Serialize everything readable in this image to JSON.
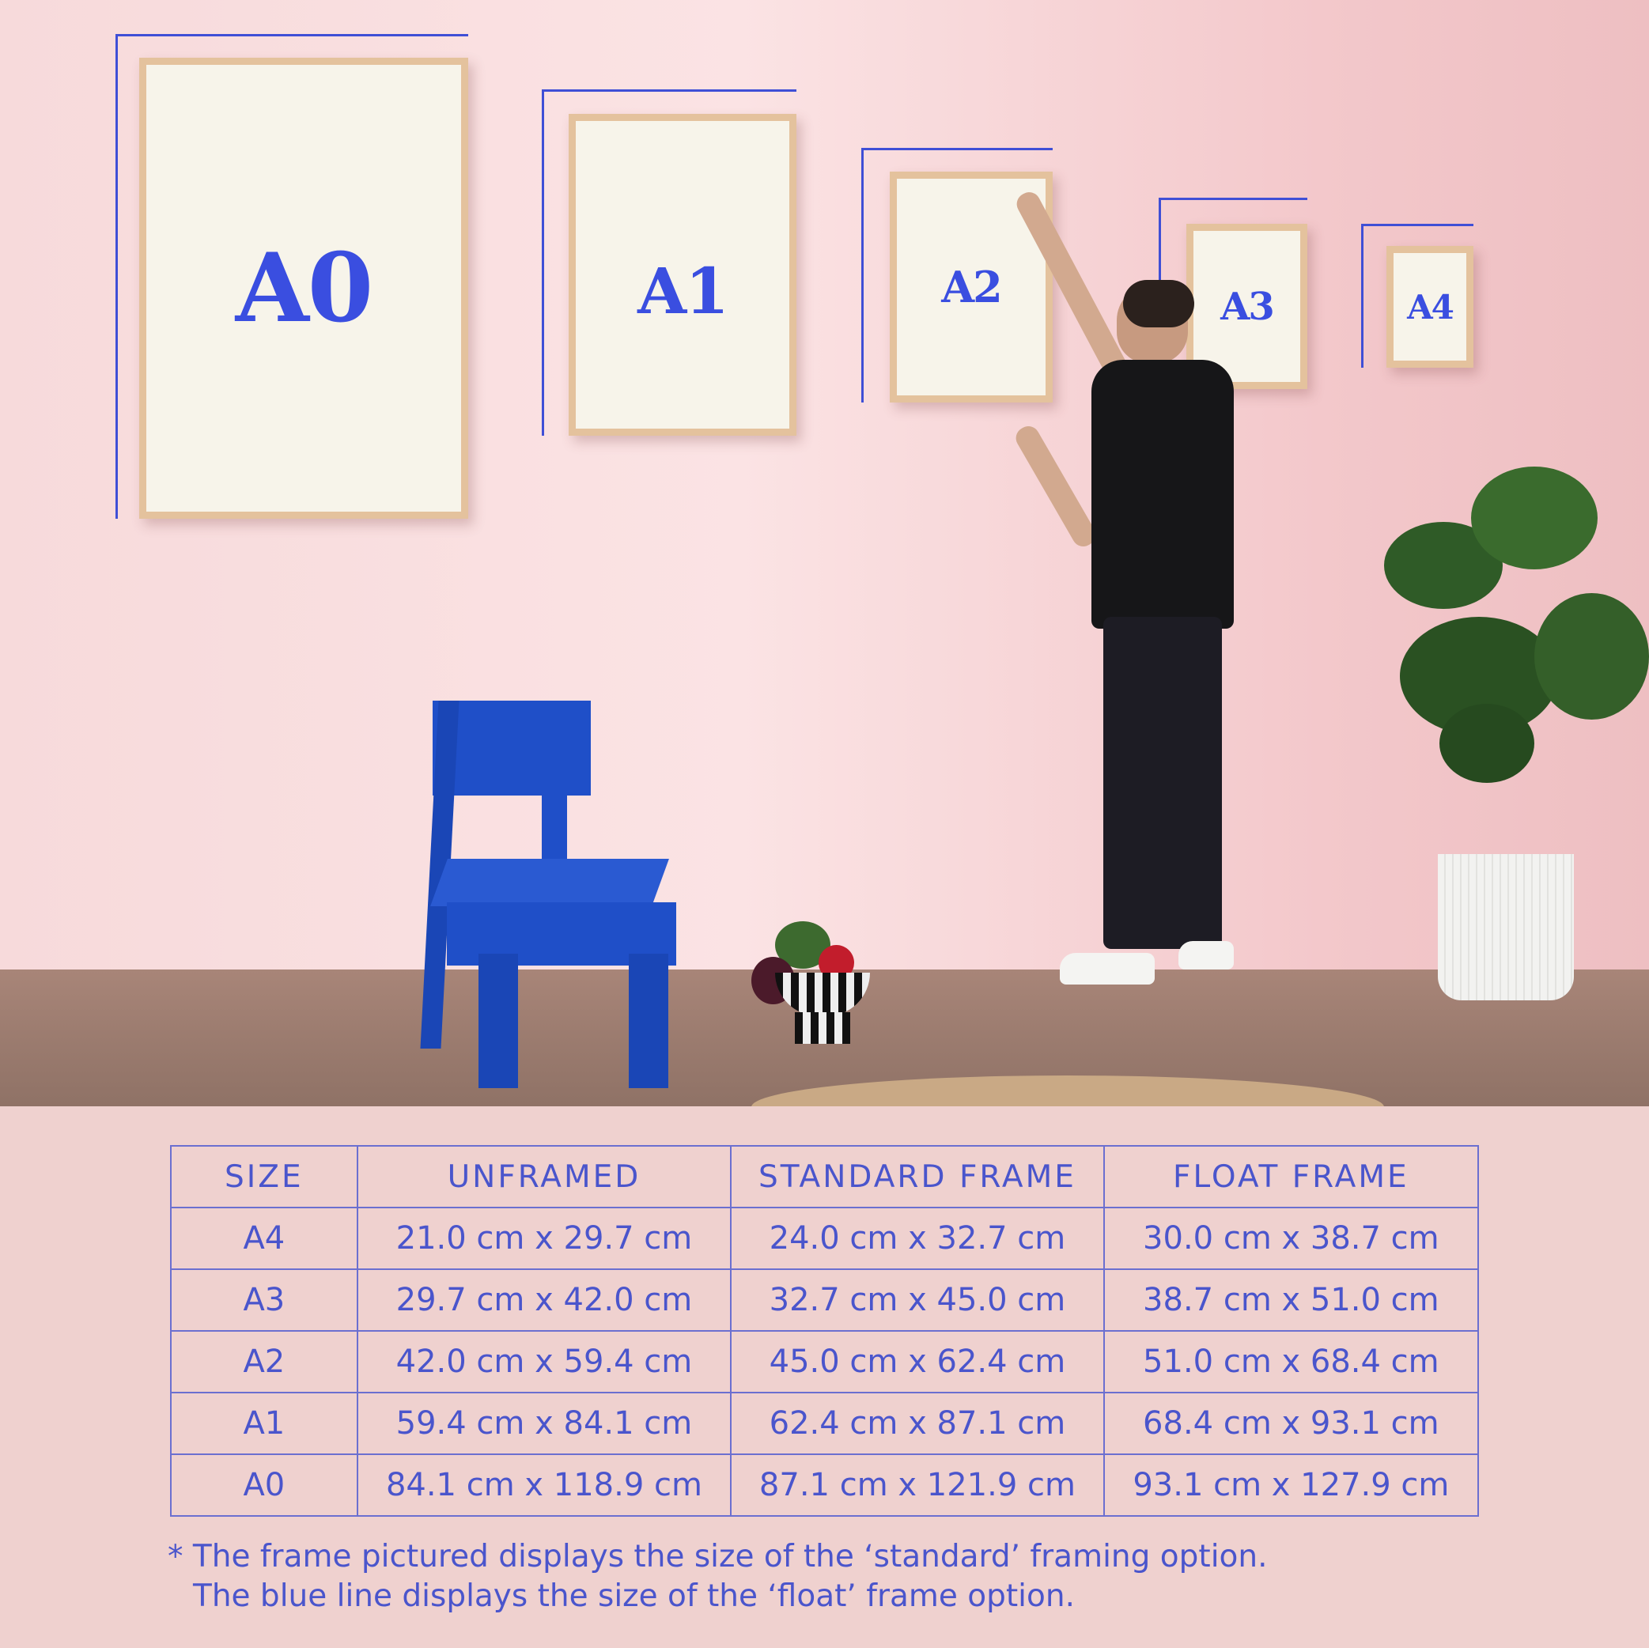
{
  "frames": [
    {
      "label": "A0"
    },
    {
      "label": "A1"
    },
    {
      "label": "A2"
    },
    {
      "label": "A3"
    },
    {
      "label": "A4"
    }
  ],
  "colors": {
    "accent": "#3f4fd6",
    "wall": "#f7dadb",
    "frame_wood": "#e4c29d",
    "chair": "#1f4fc8"
  },
  "table": {
    "headers": [
      "SIZE",
      "UNFRAMED",
      "STANDARD FRAME",
      "FLOAT FRAME"
    ],
    "rows": [
      [
        "A4",
        "21.0 cm x 29.7 cm",
        "24.0 cm x 32.7 cm",
        "30.0 cm x 38.7 cm"
      ],
      [
        "A3",
        "29.7 cm x 42.0 cm",
        "32.7 cm x 45.0 cm",
        "38.7 cm x 51.0 cm"
      ],
      [
        "A2",
        "42.0 cm x 59.4 cm",
        "45.0 cm x 62.4 cm",
        "51.0 cm x 68.4 cm"
      ],
      [
        "A1",
        "59.4 cm x 84.1 cm",
        "62.4 cm x 87.1 cm",
        "68.4 cm x 93.1 cm"
      ],
      [
        "A0",
        "84.1 cm x 118.9 cm",
        "87.1 cm x 121.9 cm",
        "93.1 cm x 127.9 cm"
      ]
    ]
  },
  "footnote": {
    "line1": "* The frame pictured displays the size of the ‘standard’ framing option.",
    "line2": "The blue line displays the size of the ‘float’ frame option."
  }
}
